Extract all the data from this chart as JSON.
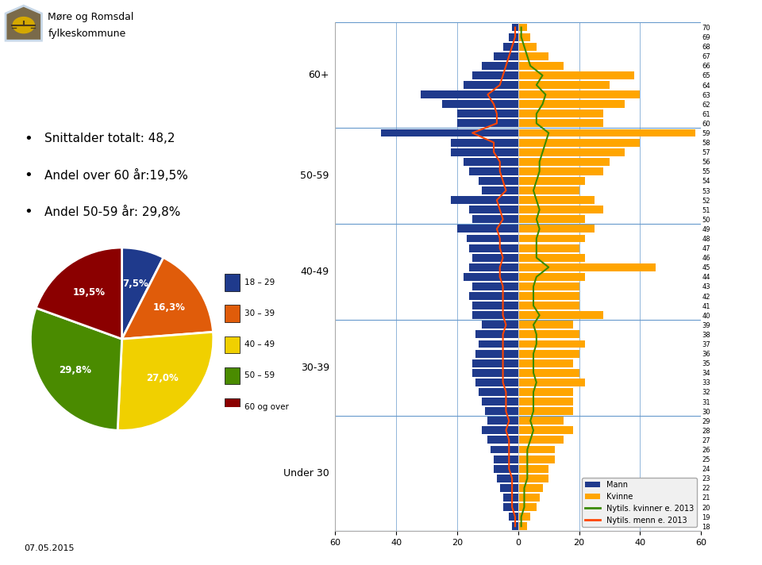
{
  "bullet_points": [
    "Snittalder totalt: 48,2",
    "Andel over 60 år:19,5%",
    "Andel 50-59 år: 29,8%"
  ],
  "pie_labels": [
    "18 – 29",
    "30 – 39",
    "40 – 49",
    "50 – 59",
    "60 og over"
  ],
  "pie_values": [
    7.5,
    16.3,
    27.0,
    29.8,
    19.5
  ],
  "pie_colors": [
    "#1F3A8C",
    "#E05C0A",
    "#F0D000",
    "#4A8B00",
    "#8B0000"
  ],
  "pie_pct_labels": [
    "7,5%",
    "16,3%",
    "27,0%",
    "29,8%",
    "19,5%"
  ],
  "date_label": "07.05.2015",
  "header_bg": "#c8d8e8",
  "mann_color": "#1F3A8C",
  "kvinne_color": "#FFA500",
  "nytils_kvinner_color": "#3A8B00",
  "nytils_menn_color": "#FF4500",
  "mann_raw": {
    "70": 2,
    "69": 3,
    "68": 5,
    "67": 8,
    "66": 12,
    "65": 15,
    "64": 18,
    "63": 32,
    "62": 25,
    "61": 20,
    "60": 20,
    "59": 45,
    "58": 22,
    "57": 22,
    "56": 18,
    "55": 16,
    "54": 13,
    "53": 12,
    "52": 22,
    "51": 16,
    "50": 15,
    "49": 20,
    "48": 17,
    "47": 16,
    "46": 15,
    "45": 16,
    "44": 18,
    "43": 15,
    "42": 16,
    "41": 15,
    "40": 15,
    "39": 12,
    "38": 14,
    "37": 13,
    "36": 14,
    "35": 15,
    "34": 15,
    "33": 14,
    "32": 13,
    "31": 12,
    "30": 11,
    "29": 10,
    "28": 12,
    "27": 10,
    "26": 9,
    "25": 8,
    "24": 8,
    "23": 7,
    "22": 6,
    "21": 5,
    "20": 5,
    "19": 3,
    "18": 2
  },
  "kvinne_raw": {
    "70": 3,
    "69": 4,
    "68": 6,
    "67": 10,
    "66": 15,
    "65": 38,
    "64": 30,
    "63": 40,
    "62": 35,
    "61": 28,
    "60": 28,
    "59": 58,
    "58": 40,
    "57": 35,
    "56": 30,
    "55": 28,
    "54": 22,
    "53": 20,
    "52": 25,
    "51": 28,
    "50": 22,
    "49": 25,
    "48": 22,
    "47": 20,
    "46": 22,
    "45": 45,
    "44": 22,
    "43": 20,
    "42": 20,
    "41": 20,
    "40": 28,
    "39": 18,
    "38": 20,
    "37": 22,
    "36": 20,
    "35": 18,
    "34": 20,
    "33": 22,
    "32": 18,
    "31": 18,
    "30": 18,
    "29": 15,
    "28": 18,
    "27": 15,
    "26": 12,
    "25": 12,
    "24": 10,
    "23": 10,
    "22": 8,
    "21": 7,
    "20": 6,
    "19": 4,
    "18": 3
  },
  "nytils_kvinner_raw": {
    "70": 1,
    "69": 1,
    "68": 2,
    "67": 3,
    "66": 4,
    "65": 8,
    "64": 6,
    "63": 9,
    "62": 8,
    "61": 6,
    "60": 6,
    "59": 10,
    "58": 9,
    "57": 8,
    "56": 7,
    "55": 7,
    "54": 6,
    "53": 5,
    "52": 6,
    "51": 7,
    "50": 6,
    "49": 7,
    "48": 6,
    "47": 6,
    "46": 6,
    "45": 10,
    "44": 6,
    "43": 5,
    "42": 5,
    "41": 5,
    "40": 7,
    "39": 5,
    "38": 6,
    "37": 6,
    "36": 5,
    "35": 5,
    "34": 5,
    "33": 6,
    "32": 5,
    "31": 5,
    "30": 5,
    "29": 4,
    "28": 5,
    "27": 4,
    "26": 3,
    "25": 3,
    "24": 3,
    "23": 3,
    "22": 2,
    "21": 2,
    "20": 2,
    "19": 1,
    "18": 1
  },
  "nytils_menn_raw": {
    "70": 1,
    "69": 1,
    "68": 2,
    "67": 3,
    "66": 4,
    "65": 5,
    "64": 6,
    "63": 10,
    "62": 8,
    "61": 7,
    "60": 7,
    "59": 15,
    "58": 8,
    "57": 8,
    "56": 6,
    "55": 6,
    "54": 5,
    "53": 4,
    "52": 7,
    "51": 6,
    "50": 5,
    "49": 7,
    "48": 6,
    "47": 6,
    "46": 5,
    "45": 6,
    "44": 6,
    "43": 5,
    "42": 5,
    "41": 5,
    "40": 5,
    "39": 4,
    "38": 5,
    "37": 5,
    "36": 5,
    "35": 5,
    "34": 5,
    "33": 5,
    "32": 4,
    "31": 4,
    "30": 4,
    "29": 3,
    "28": 4,
    "27": 3,
    "26": 3,
    "25": 3,
    "24": 3,
    "23": 2,
    "22": 2,
    "21": 2,
    "20": 2,
    "19": 1,
    "18": 1
  }
}
